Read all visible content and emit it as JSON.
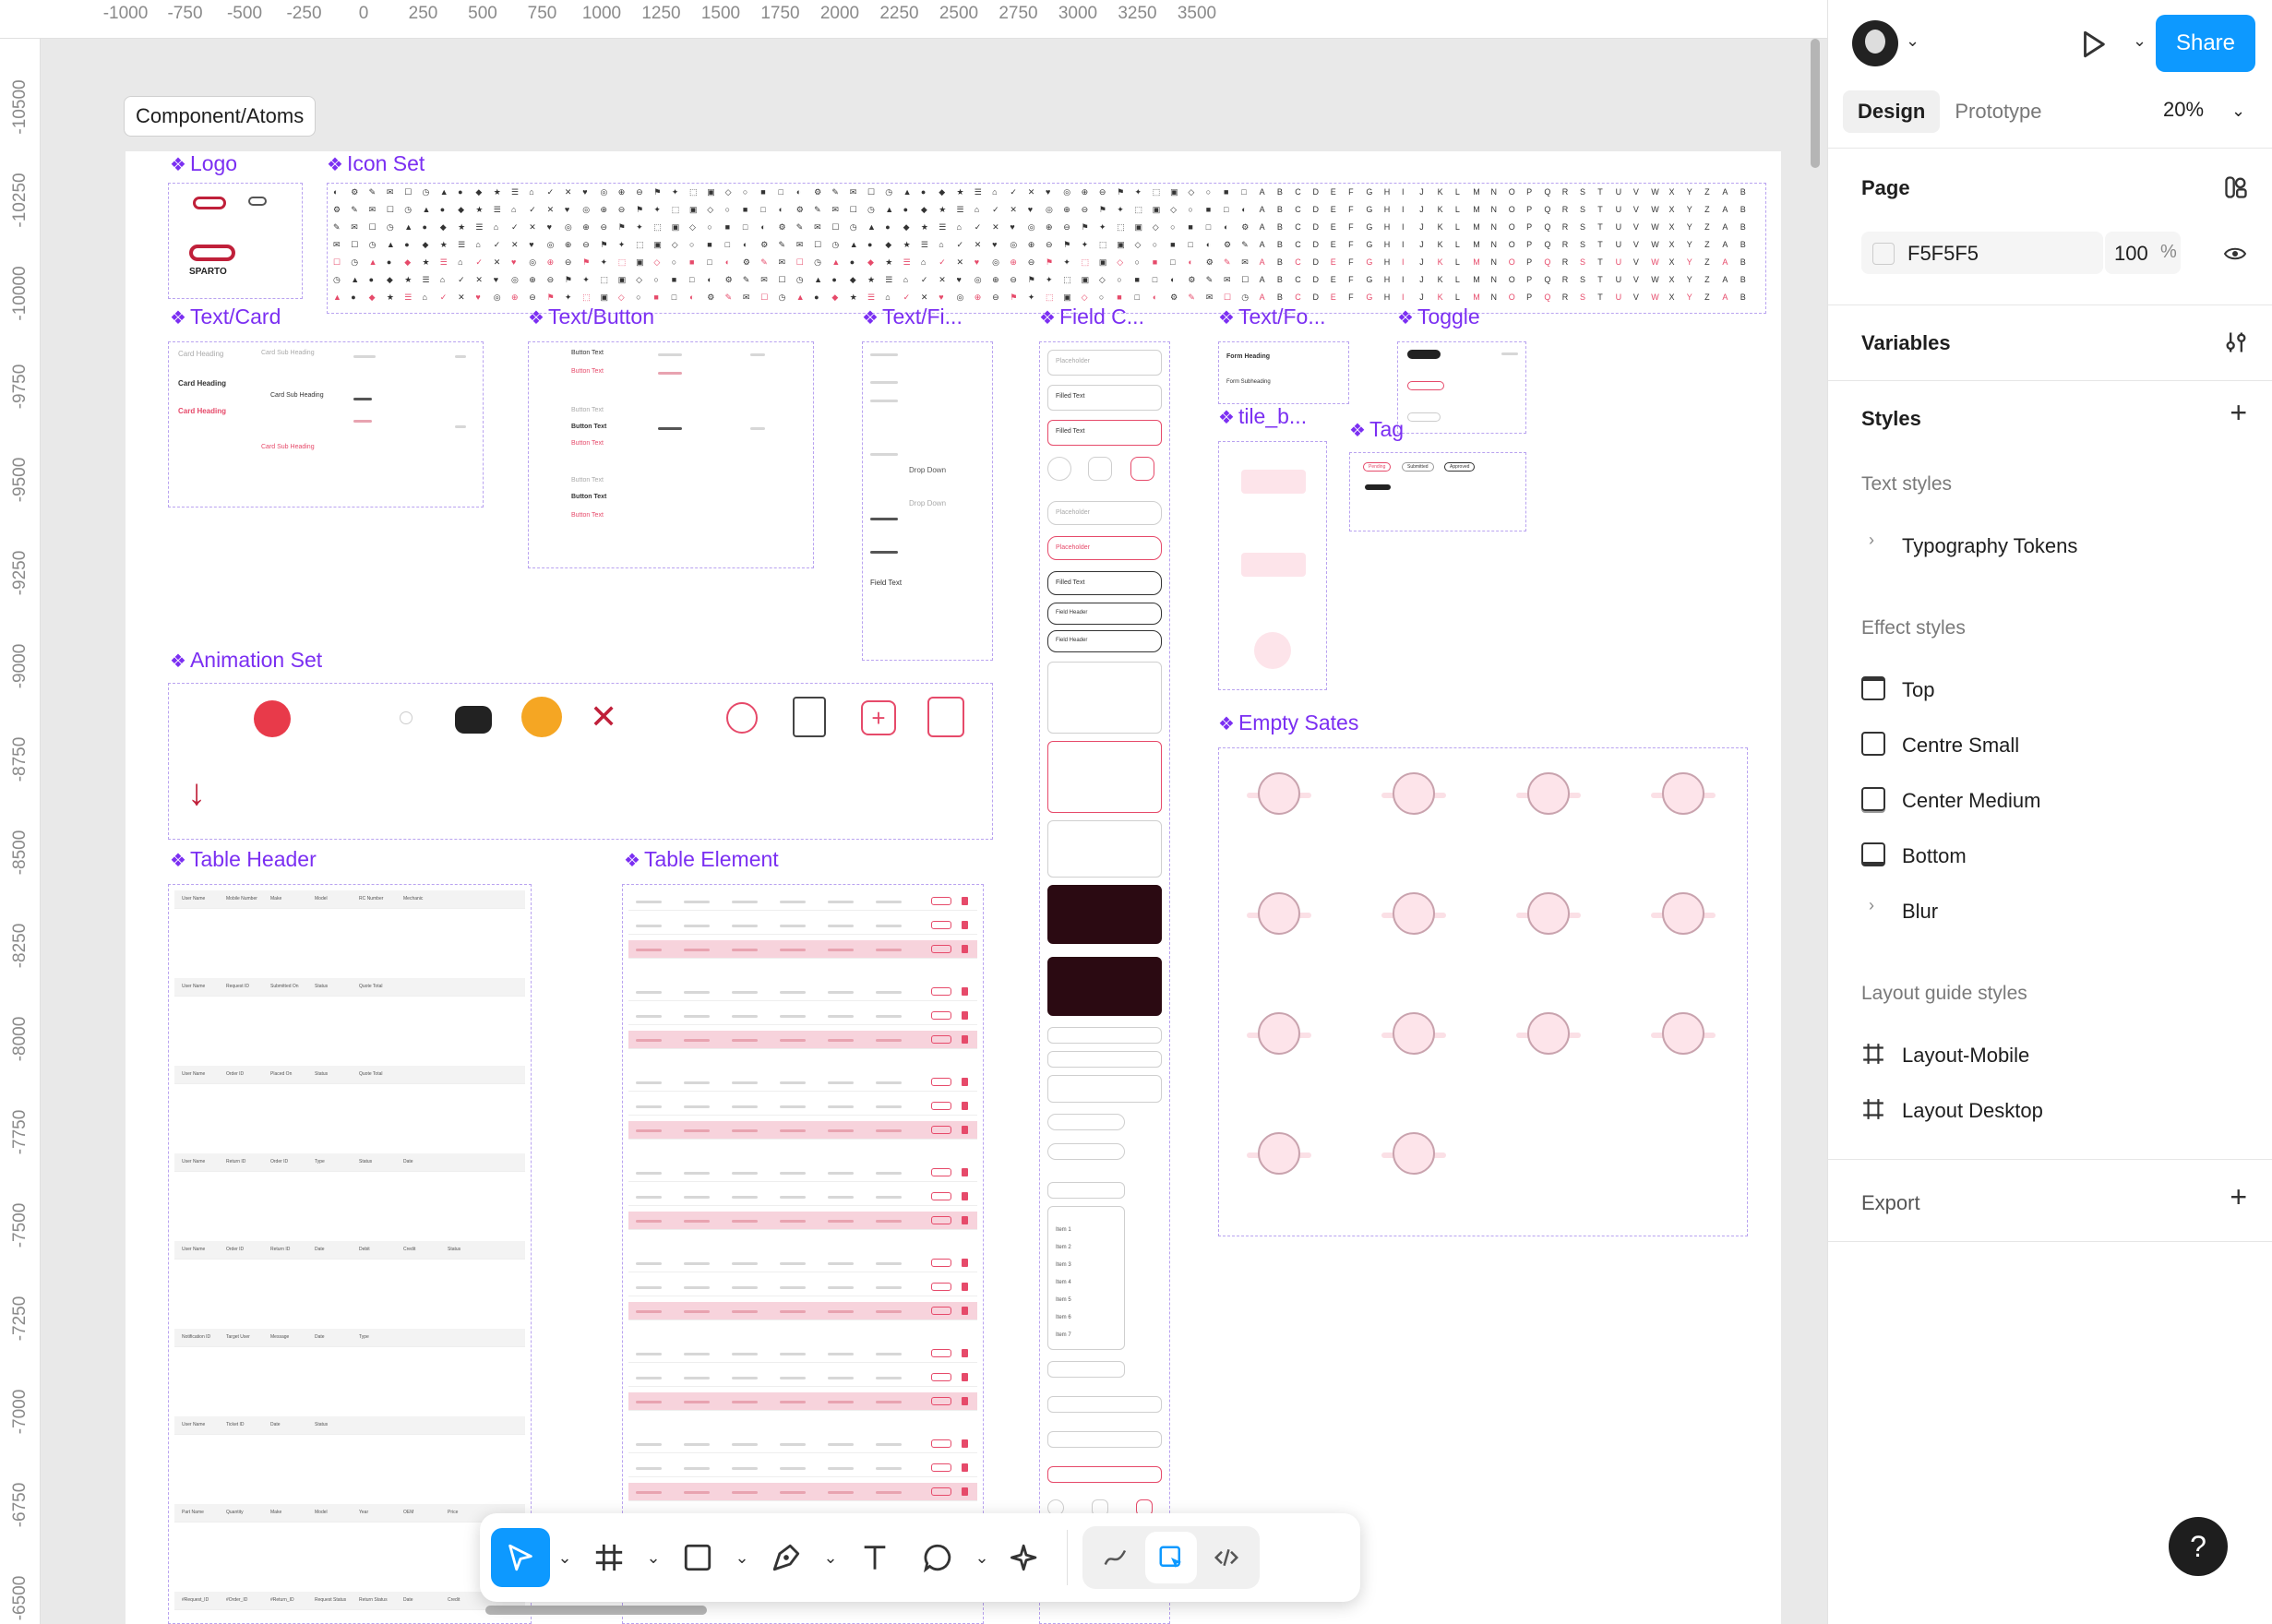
{
  "ruler": {
    "top_ticks": [
      "-1000",
      "-750",
      "-500",
      "-250",
      "0",
      "250",
      "500",
      "750",
      "1000",
      "1250",
      "1500",
      "1750",
      "2000",
      "2250",
      "2500",
      "2750",
      "3000",
      "3250",
      "3500"
    ],
    "left_ticks": [
      "-10500",
      "-10250",
      "-10000",
      "-9750",
      "-9500",
      "-9250",
      "-9000",
      "-8750",
      "-8500",
      "-8250",
      "-8000",
      "-7750",
      "-7500",
      "-7250",
      "-7000",
      "-6750",
      "-6500"
    ]
  },
  "frame": {
    "label": "Component/Atoms",
    "sections": {
      "logo": "Logo",
      "icon_set": "Icon Set",
      "text_card": "Text/Card",
      "text_button": "Text/Button",
      "text_field": "Text/Fi...",
      "field_comp": "Field C...",
      "text_form": "Text/Fo...",
      "toggle": "Toggle",
      "tile": "tile_b...",
      "tag": "Tag",
      "animation_set": "Animation Set",
      "empty_states": "Empty Sates",
      "table_header": "Table Header",
      "table_element": "Table Element"
    },
    "logo_text": "SPARTO",
    "card_texts": [
      "Card Heading",
      "Card Sub Heading",
      "Card Heading",
      "Card Sub Heading",
      "Card Heading",
      "Card Sub Heading"
    ],
    "button_texts": [
      "Button Text",
      "Button Text",
      "Button Text",
      "Button Text",
      "Button Text",
      "Button Text",
      "Button Text",
      "Button Text"
    ],
    "field_texts": [
      "Placeholder",
      "Filled Text",
      "Filled Text",
      "Placeholder",
      "Placeholder",
      "Filled Text",
      "Field Header",
      "Field Header"
    ],
    "form_texts": [
      "Form Heading",
      "Form Subheading"
    ],
    "dropdown_texts": [
      "Drop Down",
      "Drop Down",
      "Field Text"
    ],
    "tag_texts": [
      "Pending",
      "Submitted",
      "Approved"
    ],
    "dropdown_items": [
      "Item 1",
      "Item 2",
      "Item 3",
      "Item 4",
      "Item 5",
      "Item 6",
      "Item 7"
    ],
    "table_header_rows": [
      [
        "User Name",
        "Mobile Number",
        "Make",
        "Model",
        "RC Number",
        "Mechanic"
      ],
      [
        "User Name",
        "Request ID",
        "Submitted On",
        "Status",
        "Quote Total"
      ],
      [
        "User Name",
        "Order ID",
        "Placed On",
        "Status",
        "Quote Total"
      ],
      [
        "User Name",
        "Return ID",
        "Order ID",
        "Type",
        "Status",
        "Date"
      ],
      [
        "User Name",
        "Order ID",
        "Return ID",
        "Date",
        "Debit",
        "Credit",
        "Status"
      ],
      [
        "Notification ID",
        "Target User",
        "Message",
        "Date",
        "Type"
      ],
      [
        "User Name",
        "Ticket ID",
        "Date",
        "Status"
      ],
      [
        "Part Name",
        "Quantity",
        "Make",
        "Model",
        "Year",
        "OEM",
        "Price"
      ],
      [
        "#Request_ID",
        "#Order_ID",
        "#Return_ID",
        "Request Status",
        "Return Status",
        "Date",
        "Credit"
      ]
    ]
  },
  "empty_state_icons": [
    "photo-icon",
    "document-icon",
    "location-pin-icon",
    "check-circle-icon",
    "cloud-sad-icon",
    "cloud-sleep-icon",
    "inbox-icon",
    "magnifier-icon",
    "chat-bubble-icon",
    "card-icon",
    "shopping-bag-icon",
    "coffee-cup-icon",
    "question-icon",
    "alert-icon"
  ],
  "animation_icons": [
    "angry-face-icon",
    "dot-icon",
    "chat-icon",
    "lock-badge-icon",
    "tools-icon",
    "alert-badge-icon",
    "search-doc-icon",
    "plus-square-icon",
    "delivery-truck-icon",
    "arrow-down-icon"
  ],
  "toolbar": {
    "tools": [
      "move-tool",
      "frame-tool",
      "shape-tool",
      "pen-tool",
      "text-tool",
      "comment-tool",
      "ai-tool"
    ],
    "dev": [
      "draw-mode",
      "design-mode",
      "dev-mode"
    ]
  },
  "panel": {
    "share_label": "Share",
    "tab_design": "Design",
    "tab_prototype": "Prototype",
    "zoom": "20%",
    "page_title": "Page",
    "page_color": "F5F5F5",
    "page_opacity": "100",
    "page_opacity_unit": "%",
    "variables_title": "Variables",
    "styles_title": "Styles",
    "text_styles_label": "Text styles",
    "text_styles": [
      "Typography Tokens"
    ],
    "effect_styles_label": "Effect styles",
    "effect_styles": [
      "Top",
      "Centre Small",
      "Center Medium",
      "Bottom",
      "Blur"
    ],
    "layout_styles_label": "Layout guide styles",
    "layout_styles": [
      "Layout-Mobile",
      "Layout Desktop"
    ],
    "export_title": "Export"
  },
  "help_label": "?",
  "colors": {
    "accent": "#0d99ff",
    "purple": "#7b2ff2",
    "red": "#e64a6a",
    "pink_row": "#f7d3dc"
  }
}
